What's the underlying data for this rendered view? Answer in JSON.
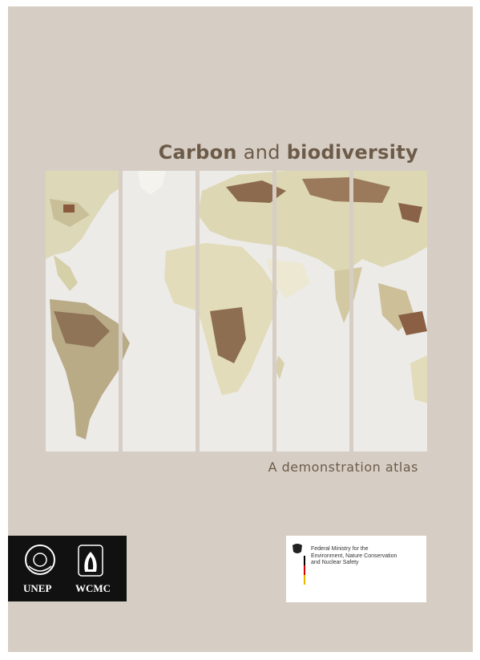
{
  "cover": {
    "title": {
      "word1": "Carbon",
      "word2": "and",
      "word3": "biodiversity"
    },
    "subtitle": "A demonstration atlas",
    "logos": {
      "unep": "UNEP",
      "wcmc": "WCMC"
    },
    "ministry": {
      "line1": "Federal Ministry for the",
      "line2": "Environment, Nature Conservation",
      "line3": "and Nuclear Safety"
    }
  }
}
